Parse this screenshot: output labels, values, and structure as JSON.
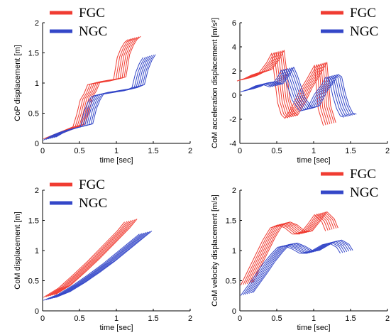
{
  "colors": {
    "fgc": "#f03c32",
    "ngc": "#3447c8"
  },
  "chart_data": [
    {
      "type": "line",
      "xlabel": "time [sec]",
      "ylabel": "CoP displacement [m]",
      "xlim": [
        0,
        2
      ],
      "ylim": [
        0,
        2
      ],
      "xticks": [
        "0",
        "0.5",
        "1",
        "1.5",
        "2"
      ],
      "yticks": [
        "0",
        "0.5",
        "1",
        "1.5",
        "2"
      ],
      "legend": [
        "FGC",
        "NGC"
      ],
      "legend_position": "top",
      "series": [
        {
          "name": "FGC",
          "x": [
            0.1,
            0.2,
            0.3,
            0.4,
            0.5,
            0.55,
            0.6,
            0.65,
            0.7,
            0.8,
            0.9,
            1.0,
            1.05,
            1.1,
            1.15,
            1.2,
            1.25
          ],
          "y": [
            0.1,
            0.15,
            0.2,
            0.25,
            0.3,
            0.5,
            0.75,
            0.85,
            1.0,
            1.02,
            1.04,
            1.06,
            1.08,
            1.45,
            1.6,
            1.7,
            1.75
          ]
        },
        {
          "name": "NGC",
          "x": [
            0.1,
            0.2,
            0.3,
            0.4,
            0.5,
            0.6,
            0.65,
            0.7,
            0.75,
            0.8,
            0.9,
            1.0,
            1.1,
            1.2,
            1.3,
            1.35,
            1.4,
            1.45
          ],
          "y": [
            0.08,
            0.15,
            0.2,
            0.24,
            0.27,
            0.3,
            0.55,
            0.7,
            0.8,
            0.82,
            0.84,
            0.86,
            0.88,
            0.9,
            0.95,
            1.2,
            1.35,
            1.45
          ]
        }
      ]
    },
    {
      "type": "line",
      "xlabel": "time [sec]",
      "ylabel": "CoM acceleration displacement [m/s²]",
      "xlim": [
        0,
        2
      ],
      "ylim": [
        -4,
        6
      ],
      "xticks": [
        "0",
        "0.5",
        "1",
        "1.5",
        "2"
      ],
      "yticks": [
        "-4",
        "-2",
        "0",
        "2",
        "4",
        "6"
      ],
      "legend": [
        "FGC",
        "NGC"
      ],
      "legend_position": "top-right",
      "series": [
        {
          "name": "FGC",
          "x": [
            0.05,
            0.15,
            0.25,
            0.35,
            0.45,
            0.52,
            0.6,
            0.65,
            0.7,
            0.8,
            0.9,
            1.0,
            1.1,
            1.15,
            1.22
          ],
          "y": [
            1.3,
            1.5,
            1.8,
            2.0,
            2.8,
            3.6,
            -0.5,
            -1.5,
            -1.8,
            -0.8,
            0.5,
            1.5,
            2.6,
            -1.0,
            -2.4
          ]
        },
        {
          "name": "NGC",
          "x": [
            0.1,
            0.2,
            0.3,
            0.4,
            0.5,
            0.55,
            0.6,
            0.65,
            0.7,
            0.8,
            0.9,
            1.0,
            1.1,
            1.2,
            1.25,
            1.3,
            1.35,
            1.4,
            1.45,
            1.5
          ],
          "y": [
            0.4,
            0.6,
            0.9,
            1.0,
            0.8,
            1.2,
            1.6,
            2.2,
            1.5,
            -0.3,
            -1.2,
            -1.0,
            0.2,
            1.0,
            1.6,
            1.4,
            0.0,
            -1.0,
            -1.6,
            -1.7
          ]
        }
      ]
    },
    {
      "type": "line",
      "xlabel": "time [sec]",
      "ylabel": "CoM displacement [m]",
      "xlim": [
        0,
        2
      ],
      "ylim": [
        0,
        2
      ],
      "xticks": [
        "0",
        "0.5",
        "1",
        "1.5",
        "2"
      ],
      "yticks": [
        "0",
        "0.5",
        "1",
        "1.5",
        "2"
      ],
      "legend": [
        "FGC",
        "NGC"
      ],
      "legend_position": "top",
      "series": [
        {
          "name": "FGC",
          "x": [
            0.1,
            0.3,
            0.5,
            0.7,
            0.9,
            1.1,
            1.2
          ],
          "y": [
            0.25,
            0.4,
            0.62,
            0.85,
            1.1,
            1.35,
            1.5
          ]
        },
        {
          "name": "NGC",
          "x": [
            0.1,
            0.3,
            0.5,
            0.7,
            0.9,
            1.1,
            1.3,
            1.4
          ],
          "y": [
            0.2,
            0.3,
            0.45,
            0.62,
            0.8,
            1.0,
            1.2,
            1.3
          ]
        }
      ]
    },
    {
      "type": "line",
      "xlabel": "time [sec]",
      "ylabel": "CoM velocity displacement [m/s]",
      "xlim": [
        0,
        2
      ],
      "ylim": [
        0,
        2
      ],
      "xticks": [
        "0",
        "0.5",
        "1",
        "1.5",
        "2"
      ],
      "yticks": [
        "0",
        "0.5",
        "1",
        "1.5",
        "2"
      ],
      "legend": [
        "FGC",
        "NGC"
      ],
      "legend_position": "top-right",
      "series": [
        {
          "name": "FGC",
          "x": [
            0.1,
            0.2,
            0.3,
            0.4,
            0.5,
            0.6,
            0.7,
            0.8,
            0.9,
            1.0,
            1.1,
            1.2,
            1.25
          ],
          "y": [
            0.45,
            0.7,
            0.95,
            1.2,
            1.4,
            1.45,
            1.4,
            1.3,
            1.3,
            1.45,
            1.62,
            1.5,
            1.35
          ]
        },
        {
          "name": "NGC",
          "x": [
            0.1,
            0.2,
            0.3,
            0.4,
            0.5,
            0.6,
            0.7,
            0.8,
            0.9,
            1.0,
            1.1,
            1.2,
            1.3,
            1.4,
            1.45
          ],
          "y": [
            0.28,
            0.45,
            0.62,
            0.8,
            0.95,
            1.08,
            1.1,
            1.05,
            0.98,
            0.98,
            1.05,
            1.12,
            1.15,
            1.08,
            0.98
          ]
        }
      ]
    }
  ]
}
